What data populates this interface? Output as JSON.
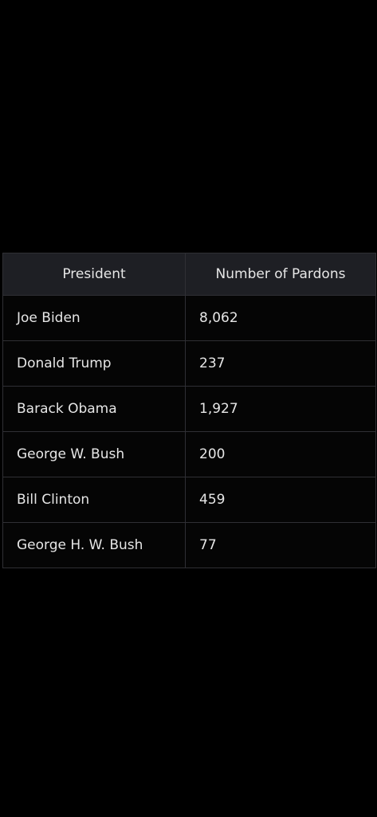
{
  "table": {
    "headers": [
      "President",
      "Number of Pardons"
    ],
    "rows": [
      [
        "Joe Biden",
        "8,062"
      ],
      [
        "Donald Trump",
        "237"
      ],
      [
        "Barack Obama",
        "1,927"
      ],
      [
        "George W. Bush",
        "200"
      ],
      [
        "Bill Clinton",
        "459"
      ],
      [
        "George H. W. Bush",
        "77"
      ]
    ]
  }
}
